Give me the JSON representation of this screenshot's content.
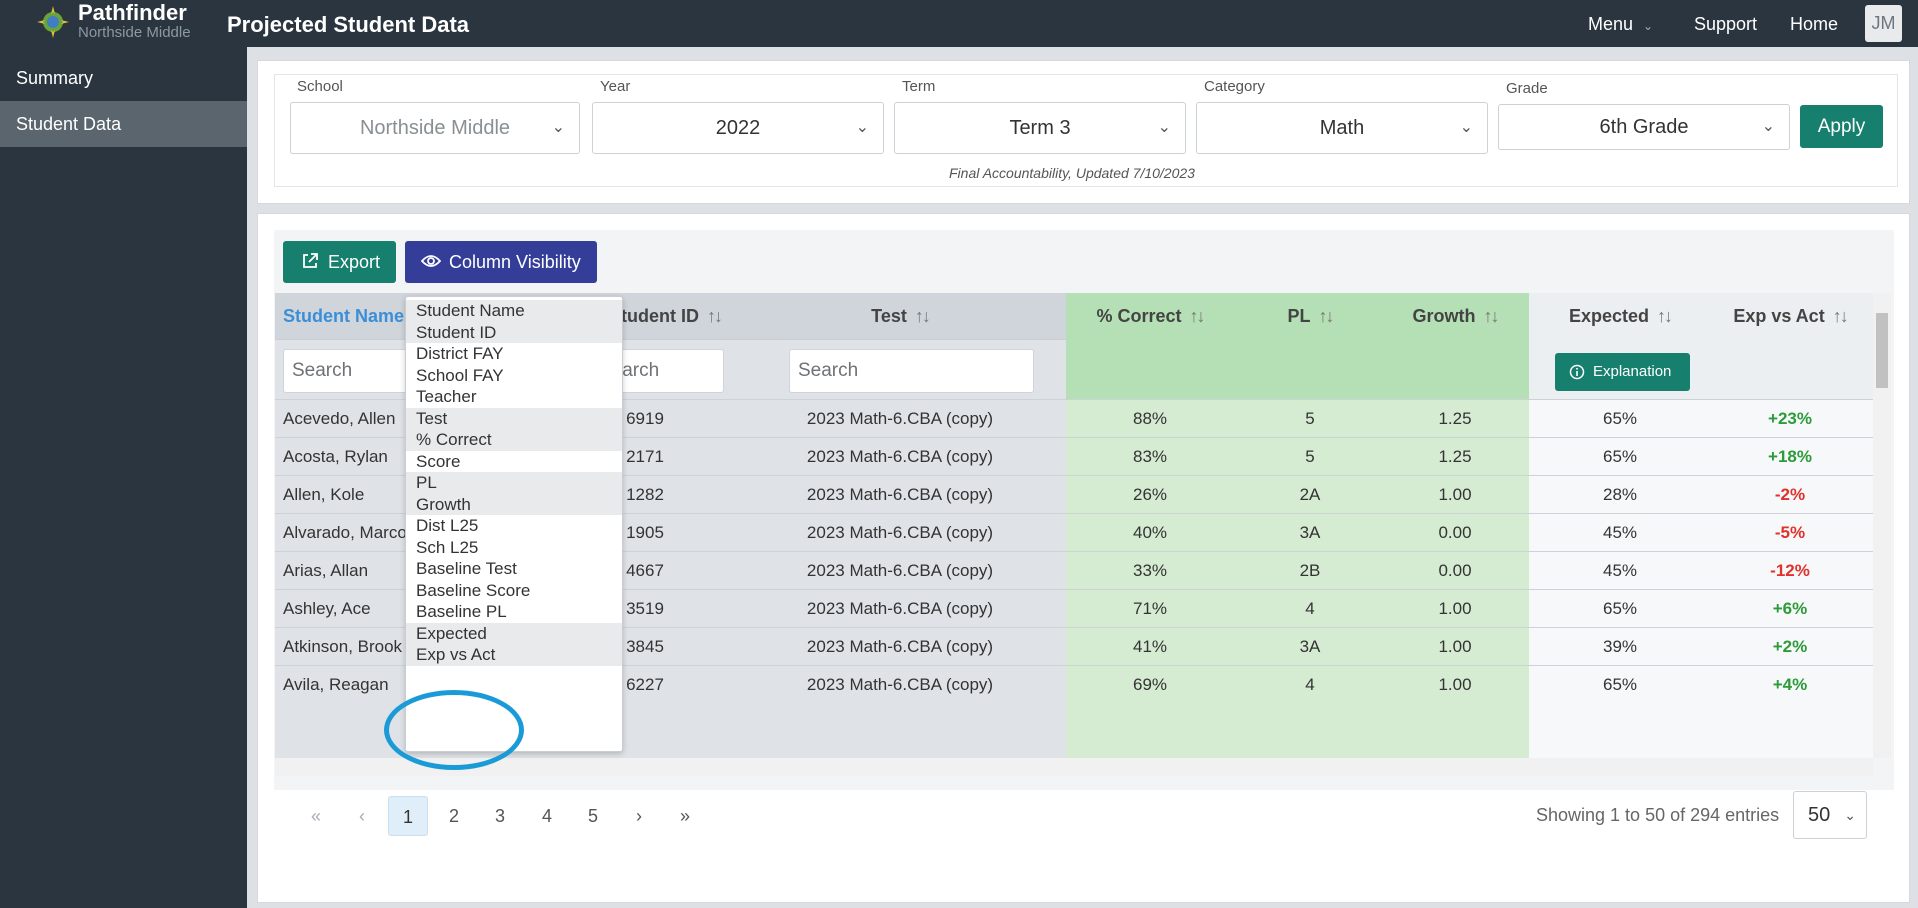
{
  "app": {
    "brand_name": "Pathfinder",
    "brand_sub": "Northside Middle",
    "page_title": "Projected Student Data"
  },
  "topnav": {
    "menu": "Menu",
    "support": "Support",
    "home": "Home",
    "avatar": "JM"
  },
  "sidebar": {
    "items": [
      {
        "label": "Summary"
      },
      {
        "label": "Student Data"
      }
    ]
  },
  "filters": {
    "school": {
      "label": "School",
      "value": "Northside Middle"
    },
    "year": {
      "label": "Year",
      "value": "2022"
    },
    "term": {
      "label": "Term",
      "value": "Term 3"
    },
    "category": {
      "label": "Category",
      "value": "Math"
    },
    "grade": {
      "label": "Grade",
      "value": "6th Grade"
    },
    "apply": "Apply",
    "note": "Final Accountability, Updated 7/10/2023"
  },
  "toolbar": {
    "export": "Export",
    "column_visibility": "Column Visibility"
  },
  "table": {
    "headers": {
      "student_name": "Student Name",
      "student_id": "Student ID",
      "test": "Test",
      "pct_correct": "% Correct",
      "pl": "PL",
      "growth": "Growth",
      "expected": "Expected",
      "exp_vs_act": "Exp vs Act"
    },
    "sort_glyph": "↑↓",
    "search_placeholder": "Search",
    "explanation": "Explanation",
    "rows": [
      {
        "name": "Acevedo, Allen",
        "id": "6919",
        "test": "2023 Math-6.CBA (copy)",
        "pct": "88%",
        "pl": "5",
        "growth": "1.25",
        "expected": "65%",
        "diff": "+23%"
      },
      {
        "name": "Acosta, Rylan",
        "id": "2171",
        "test": "2023 Math-6.CBA (copy)",
        "pct": "83%",
        "pl": "5",
        "growth": "1.25",
        "expected": "65%",
        "diff": "+18%"
      },
      {
        "name": "Allen, Kole",
        "id": "1282",
        "test": "2023 Math-6.CBA (copy)",
        "pct": "26%",
        "pl": "2A",
        "growth": "1.00",
        "expected": "28%",
        "diff": "-2%"
      },
      {
        "name": "Alvarado, Marco",
        "id": "1905",
        "test": "2023 Math-6.CBA (copy)",
        "pct": "40%",
        "pl": "3A",
        "growth": "0.00",
        "expected": "45%",
        "diff": "-5%"
      },
      {
        "name": "Arias, Allan",
        "id": "4667",
        "test": "2023 Math-6.CBA (copy)",
        "pct": "33%",
        "pl": "2B",
        "growth": "0.00",
        "expected": "45%",
        "diff": "-12%"
      },
      {
        "name": "Ashley, Ace",
        "id": "3519",
        "test": "2023 Math-6.CBA (copy)",
        "pct": "71%",
        "pl": "4",
        "growth": "1.00",
        "expected": "65%",
        "diff": "+6%"
      },
      {
        "name": "Atkinson, Brook",
        "id": "3845",
        "test": "2023 Math-6.CBA (copy)",
        "pct": "41%",
        "pl": "3A",
        "growth": "1.00",
        "expected": "39%",
        "diff": "+2%"
      },
      {
        "name": "Avila, Reagan",
        "id": "6227",
        "test": "2023 Math-6.CBA (copy)",
        "pct": "69%",
        "pl": "4",
        "growth": "1.00",
        "expected": "65%",
        "diff": "+4%"
      }
    ]
  },
  "column_menu": {
    "items": [
      {
        "label": "Student Name",
        "visible": true
      },
      {
        "label": "Student ID",
        "visible": true
      },
      {
        "label": "District FAY",
        "visible": false
      },
      {
        "label": "School FAY",
        "visible": false
      },
      {
        "label": "Teacher",
        "visible": false
      },
      {
        "label": "Test",
        "visible": true
      },
      {
        "label": "% Correct",
        "visible": true
      },
      {
        "label": "Score",
        "visible": false
      },
      {
        "label": "PL",
        "visible": true
      },
      {
        "label": "Growth",
        "visible": true
      },
      {
        "label": "Dist L25",
        "visible": false
      },
      {
        "label": "Sch L25",
        "visible": false
      },
      {
        "label": "Baseline Test",
        "visible": false
      },
      {
        "label": "Baseline Score",
        "visible": false
      },
      {
        "label": "Baseline PL",
        "visible": false
      },
      {
        "label": "Expected",
        "visible": true
      },
      {
        "label": "Exp vs Act",
        "visible": true
      }
    ]
  },
  "pagination": {
    "first": "«",
    "prev": "‹",
    "pages": [
      "1",
      "2",
      "3",
      "4",
      "5"
    ],
    "current": "1",
    "next": "›",
    "last": "»",
    "showing": "Showing 1 to 50 of 294 entries",
    "page_size": "50"
  },
  "colors": {
    "topbar": "#2a353f",
    "teal_button": "#167f6e",
    "colvis_button": "#343e99",
    "positive": "#2c9b3a",
    "negative": "#e0312b",
    "highlight_circle": "#1a9ad6"
  }
}
